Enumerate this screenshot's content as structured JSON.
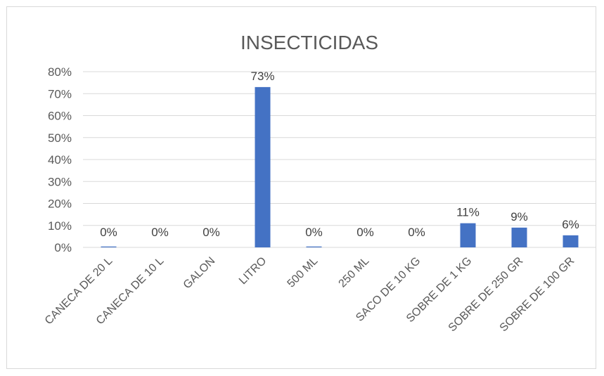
{
  "chart_data": {
    "type": "bar",
    "title": "INSECTICIDAS",
    "xlabel": "",
    "ylabel": "",
    "categories": [
      "CANECA DE 20 L",
      "CANECA DE 10 L",
      "GALON",
      "LITRO",
      "500 ML",
      "250 ML",
      "SACO DE 10 KG",
      "SOBRE DE 1 KG",
      "SOBRE DE 250 GR",
      "SOBRE DE 100 GR"
    ],
    "values": [
      0.004,
      0,
      0,
      0.73,
      0.004,
      0,
      0,
      0.11,
      0.09,
      0.055
    ],
    "data_labels": [
      "0%",
      "0%",
      "0%",
      "73%",
      "0%",
      "0%",
      "0%",
      "11%",
      "9%",
      "6%"
    ],
    "ylim": [
      0,
      0.8
    ],
    "yticks": [
      0,
      0.1,
      0.2,
      0.3,
      0.4,
      0.5,
      0.6,
      0.7,
      0.8
    ],
    "ytick_labels": [
      "0%",
      "10%",
      "20%",
      "30%",
      "40%",
      "50%",
      "60%",
      "70%",
      "80%"
    ],
    "grid": true,
    "legend": "none",
    "bar_color": "#4472c4"
  }
}
